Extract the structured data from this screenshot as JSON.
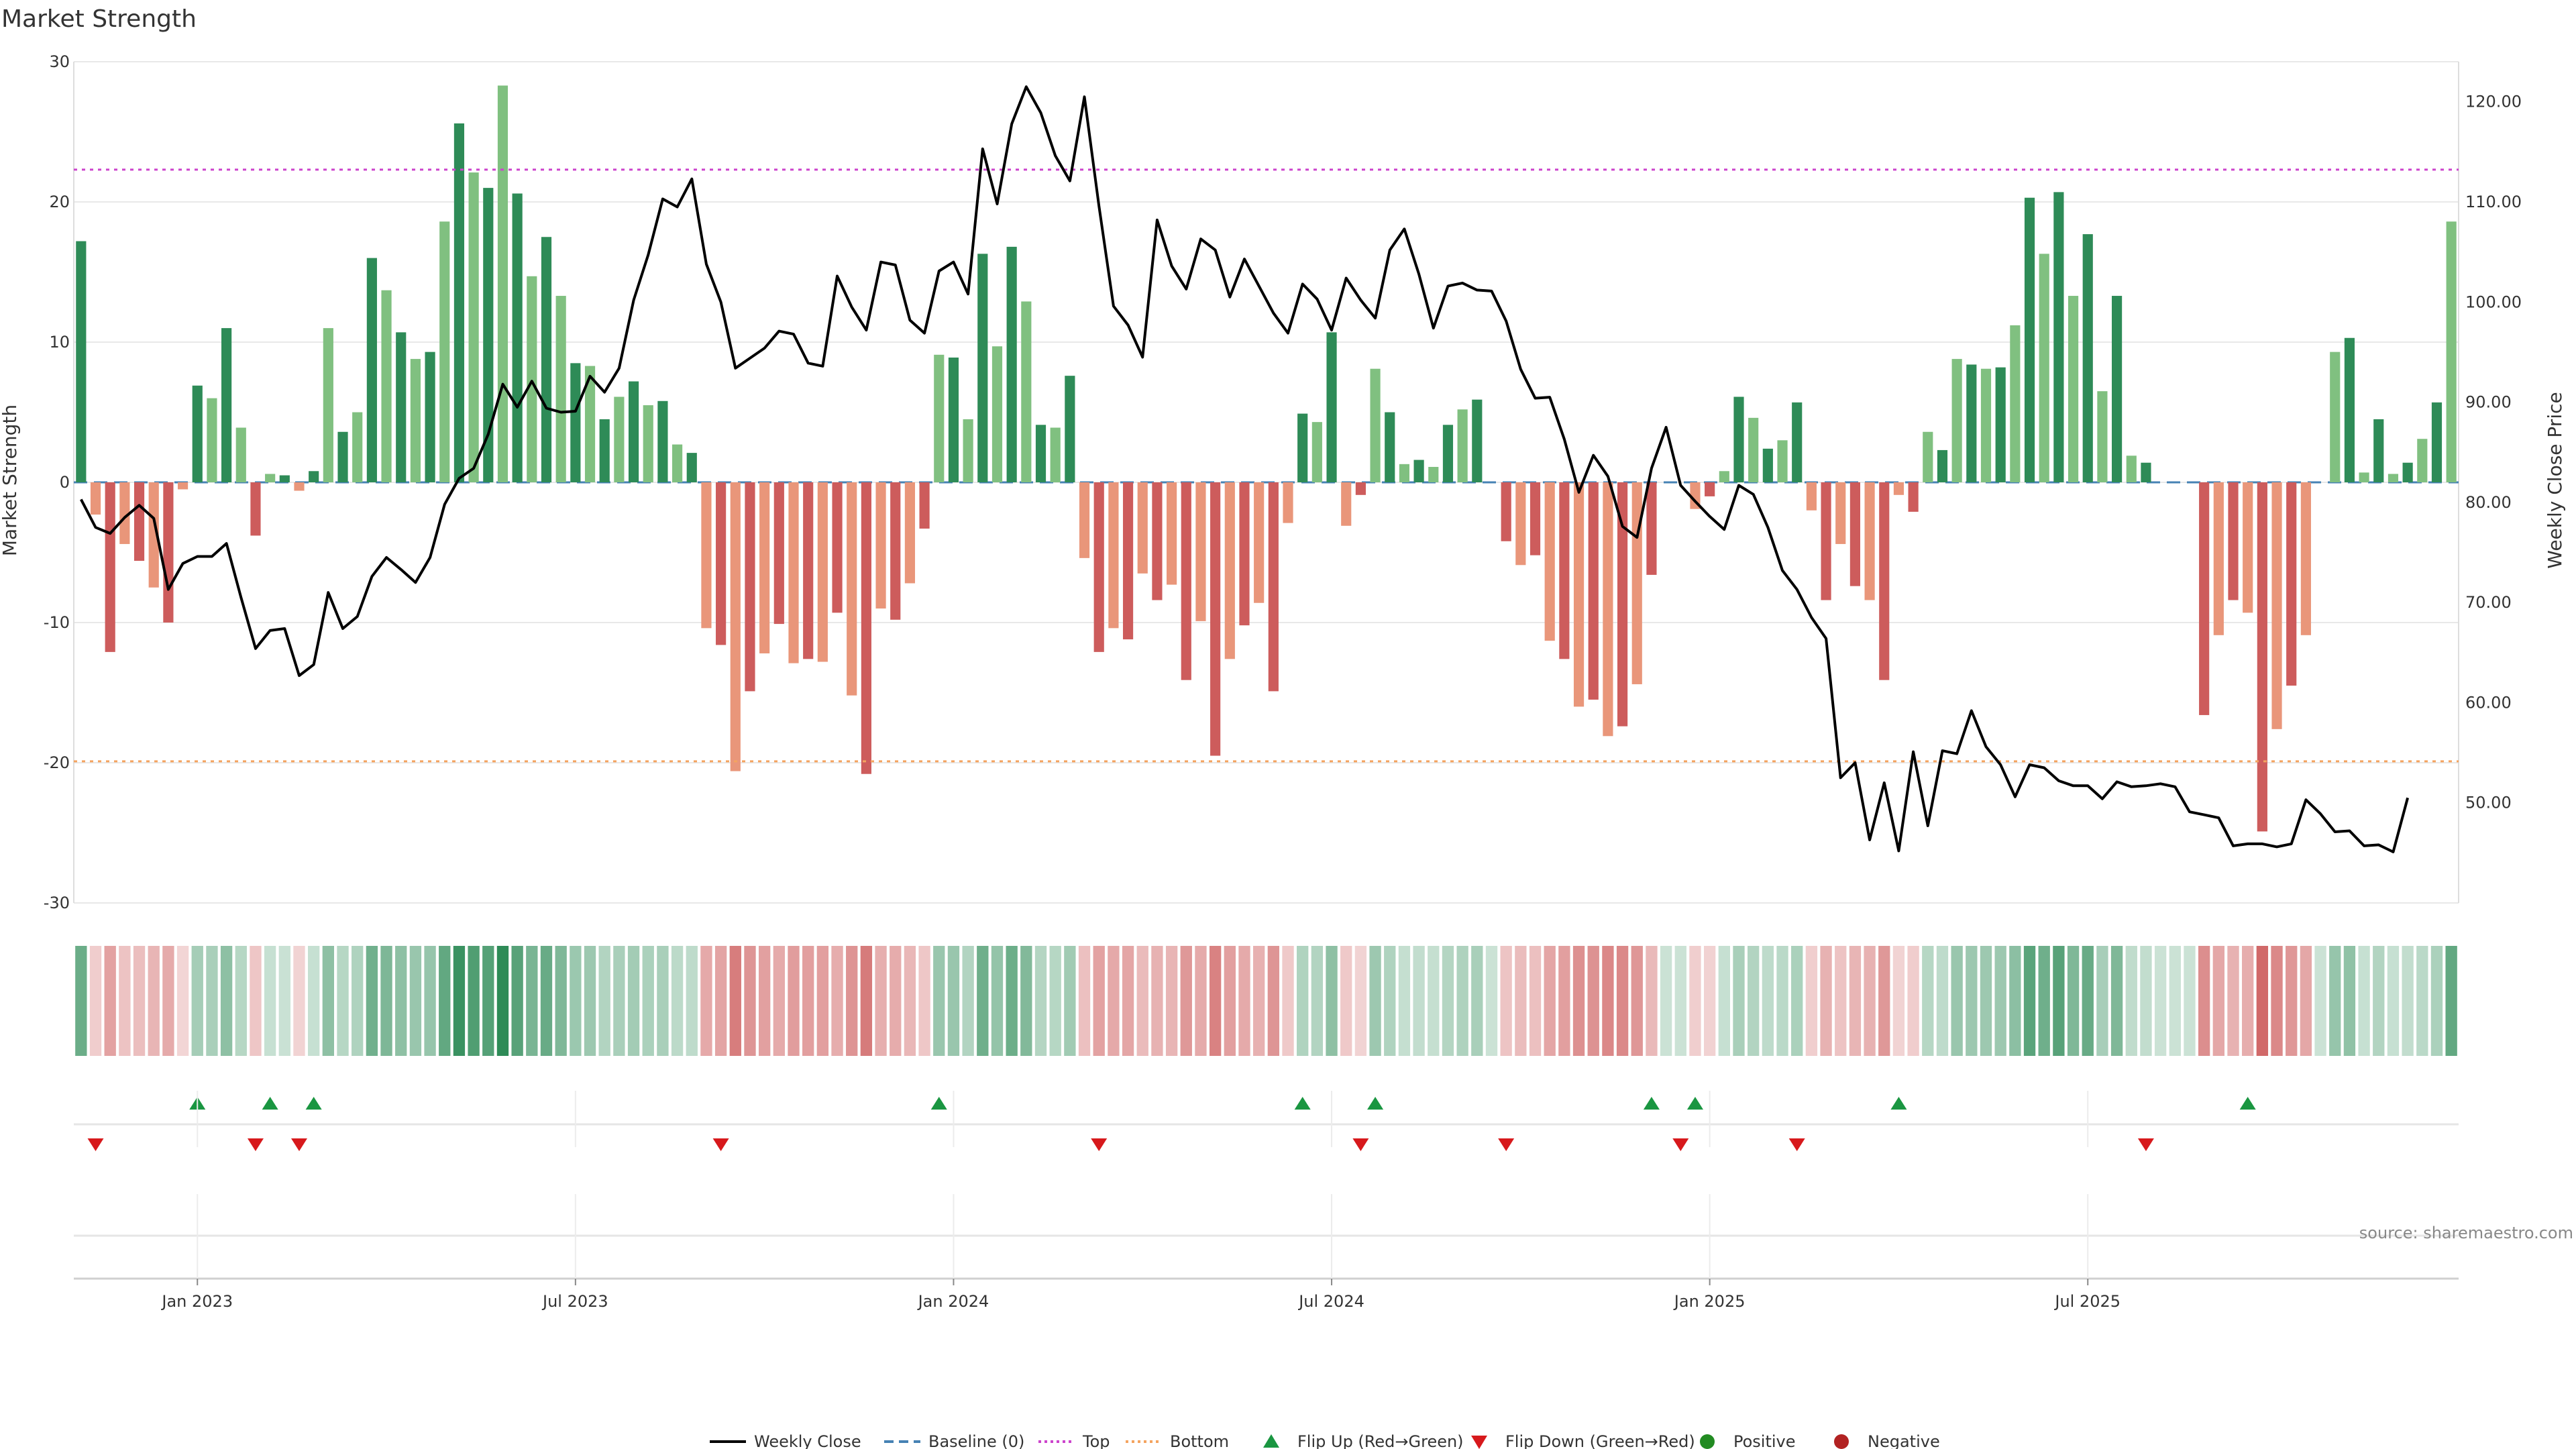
{
  "chart_data": {
    "type": "bar",
    "title": "Market Strength",
    "ylabel_left": "Market Strength",
    "ylabel_right": "Weekly Close Price",
    "ylim_left": [
      -30,
      30
    ],
    "ylim_right": [
      40,
      124
    ],
    "yticks_left": [
      30,
      20,
      10,
      0,
      -10,
      -20,
      -30
    ],
    "yticks_right": [
      "120.00",
      "110.00",
      "100.00",
      "90.00",
      "80.00",
      "70.00",
      "60.00",
      "50.00"
    ],
    "yticks_right_values": [
      120,
      110,
      100,
      90,
      80,
      70,
      60,
      50
    ],
    "x_ticks": [
      {
        "week": 8,
        "label": "Jan 2023"
      },
      {
        "week": 34,
        "label": "Jul 2023"
      },
      {
        "week": 60,
        "label": "Jan 2024"
      },
      {
        "week": 86,
        "label": "Jul 2024"
      },
      {
        "week": 112,
        "label": "Jan 2025"
      },
      {
        "week": 138,
        "label": "Jul 2025"
      }
    ],
    "top_line": 22.3,
    "bottom_line": -19.9,
    "strength": [
      17.2,
      -2.3,
      -12.1,
      -4.4,
      -5.6,
      -7.5,
      -10,
      -0.5,
      6.9,
      6,
      11,
      3.9,
      -3.8,
      0.6,
      0.5,
      -0.6,
      0.8,
      11,
      3.6,
      5,
      16,
      13.7,
      10.7,
      8.8,
      9.3,
      18.6,
      25.6,
      22.1,
      21,
      28.3,
      20.6,
      14.7,
      17.5,
      13.3,
      8.5,
      8.3,
      4.5,
      6.1,
      7.2,
      5.5,
      5.8,
      2.7,
      2.1,
      -10.4,
      -11.6,
      -20.6,
      -14.9,
      -12.2,
      -10.1,
      -12.9,
      -12.6,
      -12.8,
      -9.3,
      -15.2,
      -20.8,
      -9,
      -9.8,
      -7.2,
      -3.3,
      9.1,
      8.9,
      4.5,
      16.3,
      9.7,
      16.8,
      12.9,
      4.1,
      3.9,
      7.6,
      -5.4,
      -12.1,
      -10.4,
      -11.2,
      -6.5,
      -8.4,
      -7.3,
      -14.1,
      -9.9,
      -19.5,
      -12.6,
      -10.2,
      -8.6,
      -14.9,
      -2.9,
      4.9,
      4.3,
      10.7,
      -3.1,
      -0.9,
      8.1,
      5,
      1.3,
      1.6,
      1.1,
      4.1,
      5.2,
      5.9,
      0,
      -4.2,
      -5.9,
      -5.2,
      -11.3,
      -12.6,
      -16,
      -15.5,
      -18.1,
      -17.4,
      -14.4,
      -6.6,
      0,
      0,
      -1.9,
      -1,
      0.8,
      6.1,
      4.6,
      2.4,
      3,
      5.7,
      -2,
      -8.4,
      -4.4,
      -7.4,
      -8.4,
      -14.1,
      -0.9,
      -2.1,
      3.6,
      2.3,
      8.8,
      8.4,
      8.1,
      8.2,
      11.2,
      20.3,
      16.3,
      20.7,
      13.3,
      17.7,
      6.5,
      13.3,
      1.9,
      1.4,
      0,
      0,
      0,
      -16.6,
      -10.9,
      -8.4,
      -9.3,
      -24.9,
      -17.6,
      -14.5,
      -10.9,
      0,
      9.3,
      10.3,
      0.7,
      4.5,
      0.6,
      1.4,
      3.1,
      5.7,
      18.6
    ],
    "close": [
      80.3,
      77.5,
      76.9,
      78.5,
      79.7,
      78.4,
      71.3,
      73.9,
      74.6,
      74.6,
      75.9,
      70.5,
      65.4,
      67.2,
      67.4,
      62.7,
      63.8,
      71,
      67.4,
      68.6,
      72.6,
      74.5,
      73.3,
      72,
      74.5,
      79.8,
      82.4,
      83.4,
      86.8,
      91.8,
      89.5,
      92.1,
      89.4,
      89,
      89.1,
      92.6,
      91,
      93.4,
      100.2,
      104.7,
      110.3,
      109.5,
      112.3,
      103.8,
      100,
      93.4,
      94.4,
      95.4,
      97.1,
      96.8,
      93.9,
      93.6,
      102.6,
      99.5,
      97.2,
      104,
      103.7,
      98.2,
      96.9,
      103.1,
      104,
      100.8,
      115.3,
      109.8,
      117.8,
      121.5,
      118.9,
      114.6,
      112.1,
      120.5,
      109.6,
      99.6,
      97.7,
      94.5,
      108.2,
      103.6,
      101.3,
      106.3,
      105.2,
      100.5,
      104.3,
      101.6,
      98.9,
      96.9,
      101.8,
      100.3,
      97.2,
      102.4,
      100.2,
      98.4,
      105.2,
      107.3,
      102.8,
      97.4,
      101.6,
      101.9,
      101.2,
      101.1,
      98.1,
      93.3,
      90.4,
      90.5,
      86.3,
      81,
      84.7,
      82.6,
      77.6,
      76.5,
      83.4,
      87.5,
      81.7,
      80.1,
      78.6,
      77.3,
      81.7,
      80.8,
      77.5,
      73.2,
      71.3,
      68.5,
      66.4,
      52.5,
      54,
      46.3,
      52,
      45.2,
      55.1,
      47.7,
      55.2,
      54.9,
      59.2,
      55.6,
      53.8,
      50.6,
      53.8,
      53.5,
      52.2,
      51.7,
      51.7,
      50.4,
      52.1,
      51.6,
      51.7,
      51.9,
      51.6,
      49.1,
      48.8,
      48.5,
      45.7,
      45.9,
      45.9,
      45.6,
      45.9,
      50.3,
      48.9,
      47.1,
      47.2,
      45.7,
      45.8,
      45.1,
      50.5
    ],
    "flip_up_weeks": [
      8,
      13,
      16,
      59,
      84,
      89,
      108,
      111,
      125,
      149
    ],
    "flip_down_weeks": [
      1,
      12,
      15,
      44,
      70,
      88,
      98,
      110,
      118,
      142
    ],
    "series": [
      {
        "name": "Weekly Close",
        "kind": "line"
      },
      {
        "name": "Baseline (0)",
        "kind": "line"
      },
      {
        "name": "Top",
        "kind": "line"
      },
      {
        "name": "Bottom",
        "kind": "line"
      }
    ],
    "legend": [
      "Weekly Close",
      "Baseline (0)",
      "Top",
      "Bottom",
      "Flip Up (Red→Green)",
      "Flip Down (Green→Red)",
      "Positive",
      "Negative"
    ],
    "legend_position": "bottom-center",
    "source": "source: sharemaestro.com"
  },
  "colors": {
    "pos_strong": "#2e8b57",
    "pos_light": "#80c080",
    "neg_strong": "#cd5c5c",
    "neg_light": "#e9967a",
    "close_line": "#000000",
    "baseline": "#4682b4",
    "top": "#cc44cc",
    "bottom": "#f4a460",
    "flip_up": "#1a9641",
    "flip_down": "#d7191c",
    "positive_dot": "#228b22",
    "negative_dot": "#b22222"
  }
}
